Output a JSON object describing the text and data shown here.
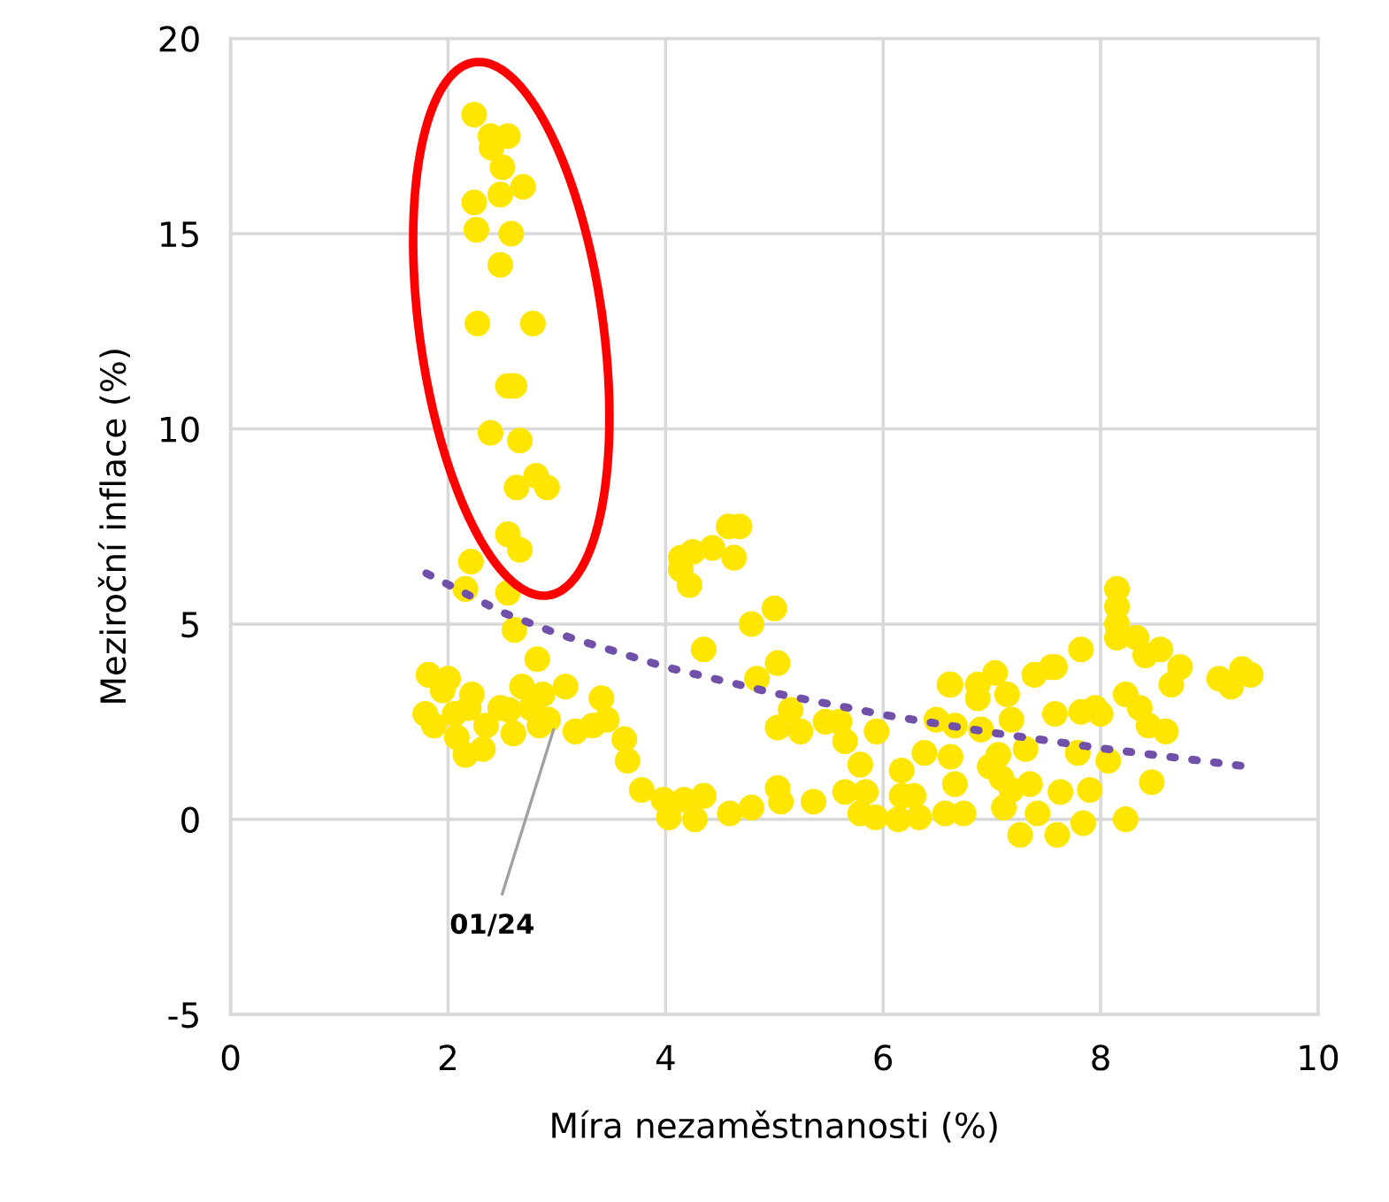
{
  "chart_data": {
    "type": "scatter",
    "xlabel": "Míra nezaměstnanosti (%)",
    "ylabel": "Meziroční inflace (%)",
    "xlim": [
      0,
      10
    ],
    "ylim": [
      -5,
      20
    ],
    "xticks": [
      0,
      2,
      4,
      6,
      8,
      10
    ],
    "yticks": [
      -5,
      0,
      5,
      10,
      15,
      20
    ],
    "grid": true,
    "annotations": [
      {
        "text": "01/24",
        "x": 2.97,
        "y": 2.3
      }
    ],
    "series": [
      {
        "marker": "circle",
        "color": "#ffe600",
        "x": [
          2.24,
          2.39,
          2.55,
          2.4,
          2.5,
          2.69,
          2.48,
          2.24,
          2.26,
          2.58,
          2.48,
          2.27,
          2.78,
          2.55,
          2.61,
          2.39,
          2.66,
          2.81,
          2.63,
          2.91,
          2.55,
          2.66,
          2.21,
          2.16,
          2.55,
          2.61,
          2.82,
          1.82,
          2.0,
          2.22,
          2.68,
          2.87,
          3.08,
          3.41,
          1.79,
          2.06,
          2.35,
          2.56,
          2.76,
          2.92,
          3.17,
          3.33,
          2.08,
          2.16,
          2.32,
          2.6,
          2.84,
          3.46,
          3.62,
          3.65,
          3.78,
          3.98,
          4.03,
          1.95,
          2.48,
          2.19,
          1.87,
          4.58,
          4.68,
          4.43,
          4.63,
          4.14,
          4.25,
          4.14,
          4.22,
          5.0,
          4.79,
          4.35,
          5.03,
          4.84,
          5.15,
          5.03,
          5.24,
          5.47,
          5.6,
          5.65,
          5.79,
          5.94,
          6.17,
          6.38,
          6.61,
          4.17,
          4.35,
          4.27,
          4.59,
          4.79,
          5.03,
          5.06,
          5.36,
          5.65,
          5.84,
          5.79,
          5.93,
          6.14,
          6.17,
          6.28,
          6.33,
          6.57,
          8.15,
          8.15,
          8.15,
          7.82,
          7.55,
          7.39,
          7.03,
          6.87,
          6.62,
          6.87,
          7.14,
          7.58,
          7.82,
          7.95,
          6.49,
          6.66,
          6.9,
          7.18,
          6.62,
          7.06,
          7.31,
          7.79,
          8.07,
          6.66,
          7.09,
          7.35,
          7.63,
          7.9,
          6.74,
          7.11,
          7.42,
          7.84,
          7.26,
          7.6,
          8.23,
          6.98,
          7.18,
          8.55,
          8.73,
          8.65,
          8.41,
          8.23,
          8.36,
          8.44,
          8.6,
          8.47,
          9.09,
          9.2,
          9.3,
          9.38,
          8.15,
          8.33,
          8.0,
          7.58
        ],
        "values": [
          18.05,
          17.5,
          17.5,
          17.2,
          16.7,
          16.2,
          16.0,
          15.8,
          15.1,
          15.0,
          14.2,
          12.7,
          12.7,
          11.1,
          11.1,
          9.9,
          9.7,
          8.8,
          8.5,
          8.5,
          7.3,
          6.9,
          6.6,
          5.9,
          5.8,
          4.85,
          4.1,
          3.7,
          3.6,
          3.2,
          3.4,
          3.2,
          3.4,
          3.1,
          2.7,
          2.7,
          2.4,
          2.8,
          2.85,
          2.55,
          2.25,
          2.4,
          2.1,
          1.65,
          1.8,
          2.2,
          2.4,
          2.55,
          2.05,
          1.5,
          0.75,
          0.5,
          0.05,
          3.3,
          2.85,
          2.85,
          2.4,
          7.5,
          7.5,
          6.95,
          6.7,
          6.7,
          6.85,
          6.4,
          6.0,
          5.4,
          5.0,
          4.35,
          4.0,
          3.6,
          2.8,
          2.35,
          2.25,
          2.5,
          2.5,
          2.0,
          1.4,
          2.25,
          1.25,
          1.7,
          3.45,
          0.5,
          0.6,
          0.0,
          0.15,
          0.3,
          0.8,
          0.45,
          0.45,
          0.7,
          0.7,
          0.15,
          0.05,
          0.0,
          0.6,
          0.6,
          0.05,
          0.15,
          5.9,
          5.45,
          5.0,
          4.35,
          3.9,
          3.7,
          3.75,
          3.45,
          3.45,
          3.1,
          3.2,
          2.7,
          2.75,
          2.85,
          2.55,
          2.4,
          2.3,
          2.55,
          1.6,
          1.65,
          1.8,
          1.7,
          1.5,
          0.9,
          1.05,
          0.9,
          0.7,
          0.75,
          0.15,
          0.3,
          0.15,
          -0.1,
          -0.4,
          -0.4,
          0.0,
          1.35,
          0.75,
          4.35,
          3.9,
          3.45,
          4.2,
          3.2,
          2.85,
          2.4,
          2.25,
          0.95,
          3.6,
          3.4,
          3.85,
          3.7,
          4.65,
          4.65,
          2.7,
          3.9
        ]
      },
      {
        "type": "line",
        "color": "#7050a8",
        "line_style": "dotted",
        "x": [
          1.8,
          2.5,
          3,
          4,
          5,
          6,
          7,
          8,
          9.35
        ],
        "values": [
          6.3,
          5.3,
          4.76,
          3.9,
          3.23,
          2.68,
          2.22,
          1.82,
          1.35
        ]
      }
    ]
  }
}
